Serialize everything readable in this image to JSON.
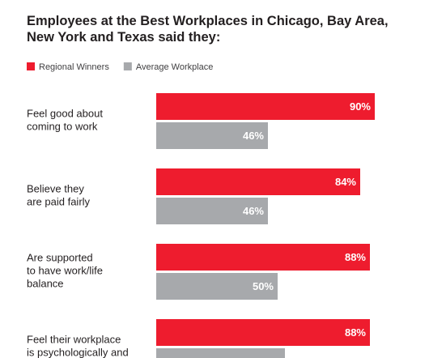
{
  "chart_data": {
    "type": "bar",
    "orientation": "horizontal",
    "subtitle": "Employees at the Best Workplaces in Chicago, Bay Area,\nNew York and Texas said they:",
    "categories": [
      "Feel good about\ncoming to work",
      "Believe they\nare paid fairly",
      "Are supported\nto have work/life\nbalance",
      "Feel their workplace\nis psychologically and"
    ],
    "series": [
      {
        "name": "Regional Winners",
        "color": "#ee1c2e",
        "values": [
          90,
          84,
          88,
          88
        ],
        "value_labels": [
          "90%",
          "84%",
          "88%",
          "88%"
        ]
      },
      {
        "name": "Average Workplace",
        "color": "#a7a9ac",
        "values": [
          46,
          46,
          50,
          53
        ],
        "value_labels": [
          "46%",
          "46%",
          "50%",
          null
        ]
      }
    ]
  }
}
